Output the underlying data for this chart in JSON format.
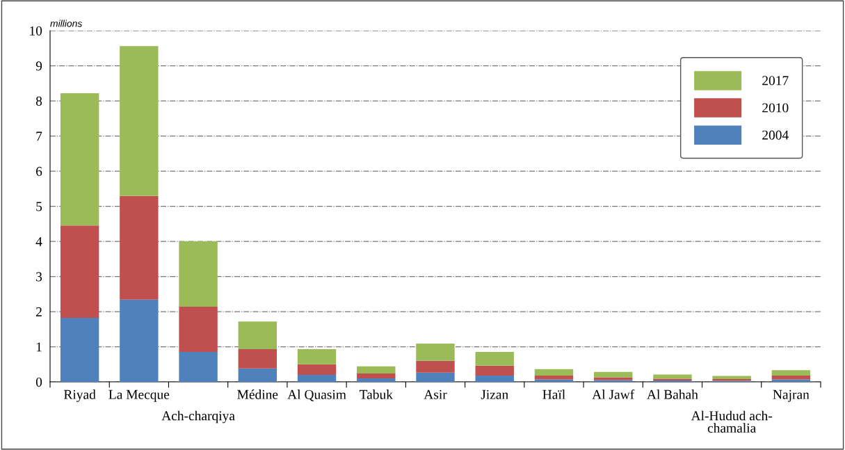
{
  "chart_data": {
    "type": "bar",
    "stacked": true,
    "ylabel": "millions",
    "categories": [
      "Riyad",
      "La Mecque",
      "Ach-charqiya",
      "Médine",
      "Al Quasim",
      "Tabuk",
      "Asir",
      "Jizan",
      "Haïl",
      "Al Jawf",
      "Al Bahah",
      "Al-Hudud ach-chamalia",
      "Najran"
    ],
    "series": [
      {
        "name": "2004",
        "color": "#4f81bd",
        "values": [
          1.82,
          2.34,
          0.85,
          0.38,
          0.2,
          0.1,
          0.26,
          0.18,
          0.07,
          0.05,
          0.04,
          0.03,
          0.07
        ]
      },
      {
        "name": "2010",
        "color": "#c0504d",
        "values": [
          2.63,
          2.95,
          1.29,
          0.55,
          0.3,
          0.14,
          0.34,
          0.28,
          0.11,
          0.08,
          0.05,
          0.05,
          0.11
        ]
      },
      {
        "name": "2017",
        "color": "#9bbb59",
        "values": [
          3.77,
          4.27,
          1.86,
          0.79,
          0.43,
          0.2,
          0.49,
          0.39,
          0.18,
          0.15,
          0.12,
          0.09,
          0.15
        ]
      }
    ],
    "ylim": [
      0,
      10
    ],
    "yticks": [
      0,
      1,
      2,
      3,
      4,
      5,
      6,
      7,
      8,
      9,
      10
    ],
    "grid": "y",
    "legend": "right"
  }
}
